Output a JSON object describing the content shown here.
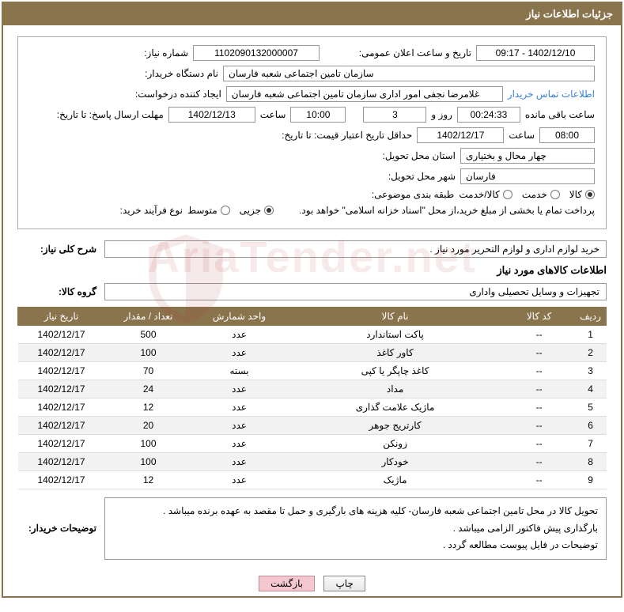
{
  "header_title": "جزئیات اطلاعات نیاز",
  "labels": {
    "need_no": "شماره نیاز:",
    "announce_dt": "تاریخ و ساعت اعلان عمومی:",
    "buyer_org": "نام دستگاه خریدار:",
    "requester": "ایجاد کننده درخواست:",
    "contact_link": "اطلاعات تماس خریدار",
    "deadline": "مهلت ارسال پاسخ: تا تاریخ:",
    "hour_word": "ساعت",
    "days_word": "روز و",
    "remaining": "ساعت باقی مانده",
    "min_validity": "حداقل تاریخ اعتبار قیمت: تا تاریخ:",
    "delivery_province": "استان محل تحویل:",
    "delivery_city": "شهر محل تحویل:",
    "subject_class": "طبقه بندی موضوعی:",
    "purchase_type": "نوع فرآیند خرید:",
    "need_desc": "شرح کلی نیاز:",
    "goods_info": "اطلاعات کالاهای مورد نیاز",
    "goods_group": "گروه کالا:",
    "buyer_notes": "توضیحات خریدار:"
  },
  "values": {
    "need_no": "1102090132000007",
    "announce_dt": "1402/12/10 - 09:17",
    "buyer_org": "سازمان تامین اجتماعی شعبه فارسان",
    "requester": "غلامرضا نجفی امور اداری سازمان تامین اجتماعی شعبه فارسان",
    "deadline_date": "1402/12/13",
    "deadline_time": "10:00",
    "deadline_days": "3",
    "deadline_remaining": "00:24:33",
    "validity_date": "1402/12/17",
    "validity_time": "08:00",
    "province": "چهار محال و بختیاری",
    "city": "فارسان",
    "need_desc": "خرید لوازم اداری و لوازم التحریر مورد نیاز .",
    "goods_group": "تجهیزات و وسایل تحصیلی واداری",
    "payment_note": "پرداخت تمام یا بخشی از مبلغ خرید،از محل \"اسناد خزانه اسلامی\" خواهد بود."
  },
  "subject_options": {
    "goods": "کالا",
    "service": "خدمت",
    "goods_service": "کالا/خدمت",
    "selected": "goods"
  },
  "purchase_options": {
    "minor": "جزیی",
    "medium": "متوسط",
    "selected": "minor"
  },
  "table": {
    "headers": {
      "row": "ردیف",
      "code": "کد کالا",
      "name": "نام کالا",
      "unit": "واحد شمارش",
      "qty": "تعداد / مقدار",
      "date": "تاریخ نیاز"
    },
    "rows": [
      {
        "row": "1",
        "code": "--",
        "name": "پاکت استاندارد",
        "unit": "عدد",
        "qty": "500",
        "date": "1402/12/17"
      },
      {
        "row": "2",
        "code": "--",
        "name": "کاور کاغذ",
        "unit": "عدد",
        "qty": "100",
        "date": "1402/12/17"
      },
      {
        "row": "3",
        "code": "--",
        "name": "کاغذ چاپگر یا کپی",
        "unit": "بسته",
        "qty": "70",
        "date": "1402/12/17"
      },
      {
        "row": "4",
        "code": "--",
        "name": "مداد",
        "unit": "عدد",
        "qty": "24",
        "date": "1402/12/17"
      },
      {
        "row": "5",
        "code": "--",
        "name": "ماژیک علامت گذاری",
        "unit": "عدد",
        "qty": "12",
        "date": "1402/12/17"
      },
      {
        "row": "6",
        "code": "--",
        "name": "کارتریج جوهر",
        "unit": "عدد",
        "qty": "20",
        "date": "1402/12/17"
      },
      {
        "row": "7",
        "code": "--",
        "name": "زونکن",
        "unit": "عدد",
        "qty": "100",
        "date": "1402/12/17"
      },
      {
        "row": "8",
        "code": "--",
        "name": "خودکار",
        "unit": "عدد",
        "qty": "100",
        "date": "1402/12/17"
      },
      {
        "row": "9",
        "code": "--",
        "name": "ماژیک",
        "unit": "عدد",
        "qty": "12",
        "date": "1402/12/17"
      }
    ]
  },
  "buyer_notes_lines": [
    "تحویل کالا در محل تامین اجتماعی شعبه فارسان- کلیه هزینه های بارگیری و حمل تا مقصد به عهده برنده میباشد .",
    "بارگذاری پیش فاکتور الزامی میباشد .",
    "توضیحات  در فایل پیوست مطالعه گردد ."
  ],
  "buttons": {
    "print": "چاپ",
    "back": "بازگشت"
  },
  "watermark": "AriaTender.net",
  "colors": {
    "brand": "#8a744e",
    "border": "#999999",
    "link": "#3a82d4",
    "alt_row": "#f2f2f2"
  }
}
